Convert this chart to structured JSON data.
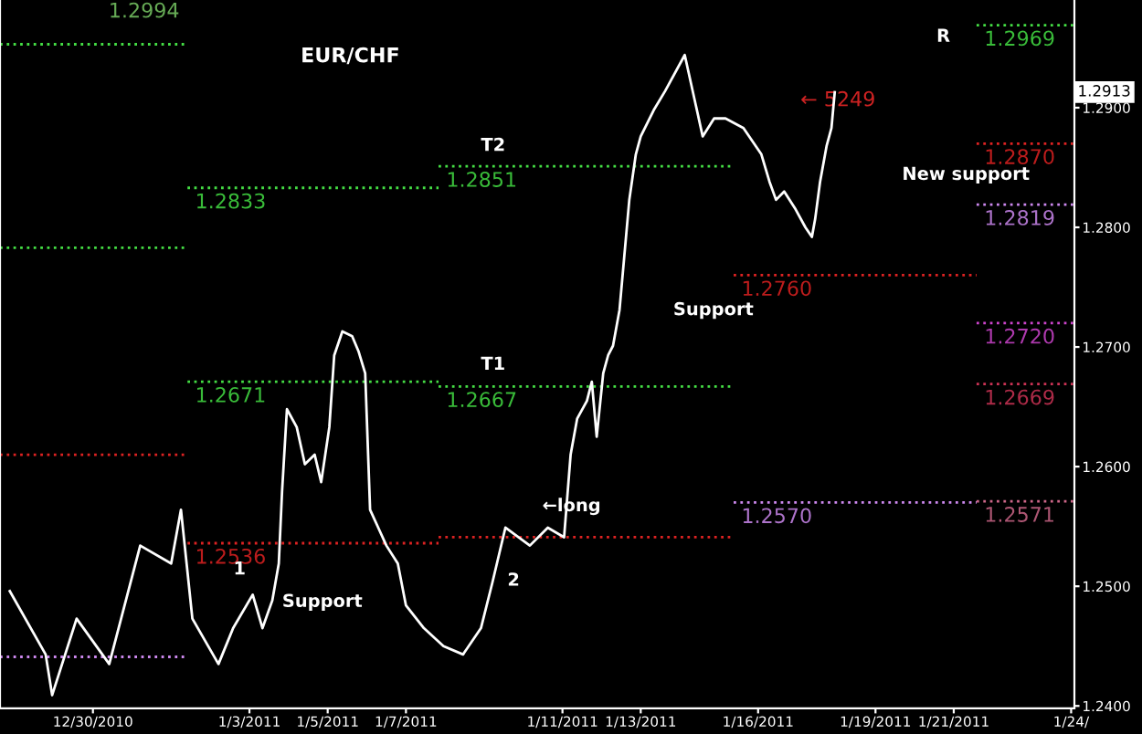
{
  "chart_data": {
    "type": "line",
    "title": "EUR/CHF",
    "xlim": [
      "2010-12-27T15:00",
      "2011-01-24T02:00"
    ],
    "ylim": [
      1.2398,
      1.299
    ],
    "xticks": [
      {
        "value": "2010-12-30",
        "label": "12/30/2010"
      },
      {
        "value": "2011-01-03",
        "label": "1/3/2011"
      },
      {
        "value": "2011-01-05",
        "label": "1/5/2011"
      },
      {
        "value": "2011-01-07",
        "label": "1/7/2011"
      },
      {
        "value": "2011-01-11",
        "label": "1/11/2011"
      },
      {
        "value": "2011-01-13",
        "label": "1/13/2011"
      },
      {
        "value": "2011-01-16",
        "label": "1/16/2011"
      },
      {
        "value": "2011-01-19",
        "label": "1/19/2011"
      },
      {
        "value": "2011-01-21",
        "label": "1/21/2011"
      },
      {
        "value": "2011-01-24",
        "label": "1/24/"
      }
    ],
    "yticks": [
      {
        "value": 1.24,
        "label": "1.2400"
      },
      {
        "value": 1.25,
        "label": "1.2500"
      },
      {
        "value": 1.26,
        "label": "1.2600"
      },
      {
        "value": 1.27,
        "label": "1.2700"
      },
      {
        "value": 1.28,
        "label": "1.2800"
      },
      {
        "value": 1.29,
        "label": "1.2900"
      }
    ],
    "grid": false,
    "series": [
      {
        "color": "#ffffff",
        "line_style": "solid",
        "x": [
          "2010-12-27T21:00",
          "2010-12-28T19:00",
          "2010-12-28T23:00",
          "2010-12-29T14:00",
          "2010-12-30T10:00",
          "2010-12-31T05:00",
          "2011-01-01T00:00",
          "2011-01-01T06:00",
          "2011-01-01T13:00",
          "2011-01-02T05:00",
          "2011-01-02T14:00",
          "2011-01-03T02:00",
          "2011-01-03T08:00",
          "2011-01-03T14:00",
          "2011-01-03T18:00",
          "2011-01-03T20:00",
          "2011-01-03T23:00",
          "2011-01-04T05:00",
          "2011-01-04T10:00",
          "2011-01-04T16:00",
          "2011-01-04T20:00",
          "2011-01-05T01:00",
          "2011-01-05T04:00",
          "2011-01-05T09:00",
          "2011-01-05T15:00",
          "2011-01-05T19:00",
          "2011-01-05T23:00",
          "2011-01-06T02:00",
          "2011-01-06T07:00",
          "2011-01-06T12:00",
          "2011-01-06T19:00",
          "2011-01-07T00:00",
          "2011-01-07T11:00",
          "2011-01-07T23:00",
          "2011-01-08T11:00",
          "2011-01-08T22:00",
          "2011-01-09T05:00",
          "2011-01-09T13:00",
          "2011-01-10T04:00",
          "2011-01-10T15:00",
          "2011-01-11T01:00",
          "2011-01-11T05:00",
          "2011-01-11T09:00",
          "2011-01-11T15:00",
          "2011-01-11T18:00",
          "2011-01-11T21:00",
          "2011-01-12T01:00",
          "2011-01-12T04:00",
          "2011-01-12T07:00",
          "2011-01-12T11:00",
          "2011-01-12T14:00",
          "2011-01-12T17:00",
          "2011-01-12T21:00",
          "2011-01-13T00:00",
          "2011-01-13T08:00",
          "2011-01-13T15:00",
          "2011-01-14T03:00",
          "2011-01-14T14:00",
          "2011-01-14T21:00",
          "2011-01-15T04:00",
          "2011-01-15T15:00",
          "2011-01-16T02:00",
          "2011-01-16T07:00",
          "2011-01-16T11:00",
          "2011-01-16T16:00",
          "2011-01-16T23:00",
          "2011-01-17T05:00",
          "2011-01-17T09:00",
          "2011-01-17T11:00",
          "2011-01-17T14:00",
          "2011-01-17T18:00",
          "2011-01-17T21:00",
          "2011-01-17T23:00"
        ],
        "values": [
          1.2496,
          1.2443,
          1.2409,
          1.2473,
          1.2435,
          1.2534,
          1.2519,
          1.2564,
          1.2473,
          1.2435,
          1.2465,
          1.2493,
          1.2465,
          1.2488,
          1.2519,
          1.2579,
          1.2648,
          1.2633,
          1.2602,
          1.261,
          1.2587,
          1.2633,
          1.2693,
          1.2713,
          1.2709,
          1.2696,
          1.2678,
          1.2564,
          1.2549,
          1.2534,
          1.2519,
          1.2484,
          1.2465,
          1.245,
          1.2443,
          1.2465,
          1.2503,
          1.2549,
          1.2534,
          1.2549,
          1.2541,
          1.261,
          1.264,
          1.2655,
          1.2671,
          1.2625,
          1.2678,
          1.2693,
          1.2701,
          1.2731,
          1.2777,
          1.2823,
          1.2861,
          1.2876,
          1.2898,
          1.2914,
          1.2944,
          1.2876,
          1.2891,
          1.2891,
          1.2883,
          1.2861,
          1.2838,
          1.2823,
          1.283,
          1.2815,
          1.28,
          1.2792,
          1.2807,
          1.2838,
          1.2868,
          1.2883,
          1.2913
        ]
      },
      {
        "color": "#44dd44",
        "line_style": "dotted",
        "x": [
          "2010-12-27T15:00",
          "2011-01-01T10:00"
        ],
        "values": [
          1.2953,
          1.2953
        ]
      },
      {
        "color": "#44dd44",
        "line_style": "dotted",
        "x": [
          "2010-12-27T15:00",
          "2011-01-01T10:00"
        ],
        "values": [
          1.2783,
          1.2783
        ]
      },
      {
        "color": "#dd2222",
        "line_style": "dotted",
        "x": [
          "2010-12-27T15:00",
          "2011-01-01T10:00"
        ],
        "values": [
          1.261,
          1.261
        ]
      },
      {
        "color": "#cc88ee",
        "line_style": "dotted",
        "x": [
          "2010-12-27T15:00",
          "2011-01-01T10:00"
        ],
        "values": [
          1.2441,
          1.2441
        ]
      },
      {
        "name": "1.2833",
        "color": "#44dd44",
        "line_style": "dotted",
        "x": [
          "2011-01-01T10:00",
          "2011-01-07T20:00"
        ],
        "values": [
          1.2833,
          1.2833
        ]
      },
      {
        "name": "1.2851",
        "color": "#44dd44",
        "line_style": "dotted",
        "x": [
          "2011-01-07T20:00",
          "2011-01-15T09:00"
        ],
        "values": [
          1.2851,
          1.2851
        ]
      },
      {
        "name": "1.2671",
        "color": "#44dd44",
        "line_style": "dotted",
        "x": [
          "2011-01-01T10:00",
          "2011-01-07T20:00"
        ],
        "values": [
          1.2671,
          1.2671
        ]
      },
      {
        "name": "1.2667",
        "color": "#44dd44",
        "line_style": "dotted",
        "x": [
          "2011-01-07T20:00",
          "2011-01-15T09:00"
        ],
        "values": [
          1.2667,
          1.2667
        ]
      },
      {
        "name": "1.2536",
        "color": "#dd2222",
        "line_style": "dotted",
        "x": [
          "2011-01-01T10:00",
          "2011-01-07T20:00"
        ],
        "values": [
          1.2536,
          1.2536
        ]
      },
      {
        "color": "#dd2222",
        "line_style": "dotted",
        "x": [
          "2011-01-07T20:00",
          "2011-01-15T09:00"
        ],
        "values": [
          1.2541,
          1.2541
        ]
      },
      {
        "name": "1.2760",
        "color": "#dd2222",
        "line_style": "dotted",
        "x": [
          "2011-01-15T09:00",
          "2011-01-21T14:00"
        ],
        "values": [
          1.276,
          1.276
        ]
      },
      {
        "name": "1.2570",
        "color": "#cc88ee",
        "line_style": "dotted",
        "x": [
          "2011-01-15T09:00",
          "2011-01-21T14:00"
        ],
        "values": [
          1.257,
          1.257
        ]
      },
      {
        "name": "1.2969",
        "color": "#44dd44",
        "line_style": "dotted",
        "x": [
          "2011-01-21T14:00",
          "2011-01-24T02:00"
        ],
        "values": [
          1.2969,
          1.2969
        ]
      },
      {
        "name": "1.2870",
        "color": "#dd2222",
        "line_style": "dotted",
        "x": [
          "2011-01-21T14:00",
          "2011-01-24T02:00"
        ],
        "values": [
          1.287,
          1.287
        ]
      },
      {
        "name": "1.2819",
        "color": "#cc88ee",
        "line_style": "dotted",
        "x": [
          "2011-01-21T14:00",
          "2011-01-24T02:00"
        ],
        "values": [
          1.2819,
          1.2819
        ]
      },
      {
        "name": "1.2720",
        "color": "#cc44cc",
        "line_style": "dotted",
        "x": [
          "2011-01-21T14:00",
          "2011-01-24T02:00"
        ],
        "values": [
          1.272,
          1.272
        ]
      },
      {
        "name": "1.2669",
        "color": "#cc3355",
        "line_style": "dotted",
        "x": [
          "2011-01-21T14:00",
          "2011-01-24T02:00"
        ],
        "values": [
          1.2669,
          1.2669
        ]
      },
      {
        "name": "1.2571",
        "color": "#cc6688",
        "line_style": "dotted",
        "x": [
          "2011-01-21T14:00",
          "2011-01-24T02:00"
        ],
        "values": [
          1.2571,
          1.2571
        ]
      }
    ],
    "annotations": [
      "1.2994",
      "T2",
      "T1",
      "1",
      "Support",
      "2",
      "←long",
      "Support",
      "New support",
      "R",
      "← 5249",
      "1.2913"
    ]
  }
}
